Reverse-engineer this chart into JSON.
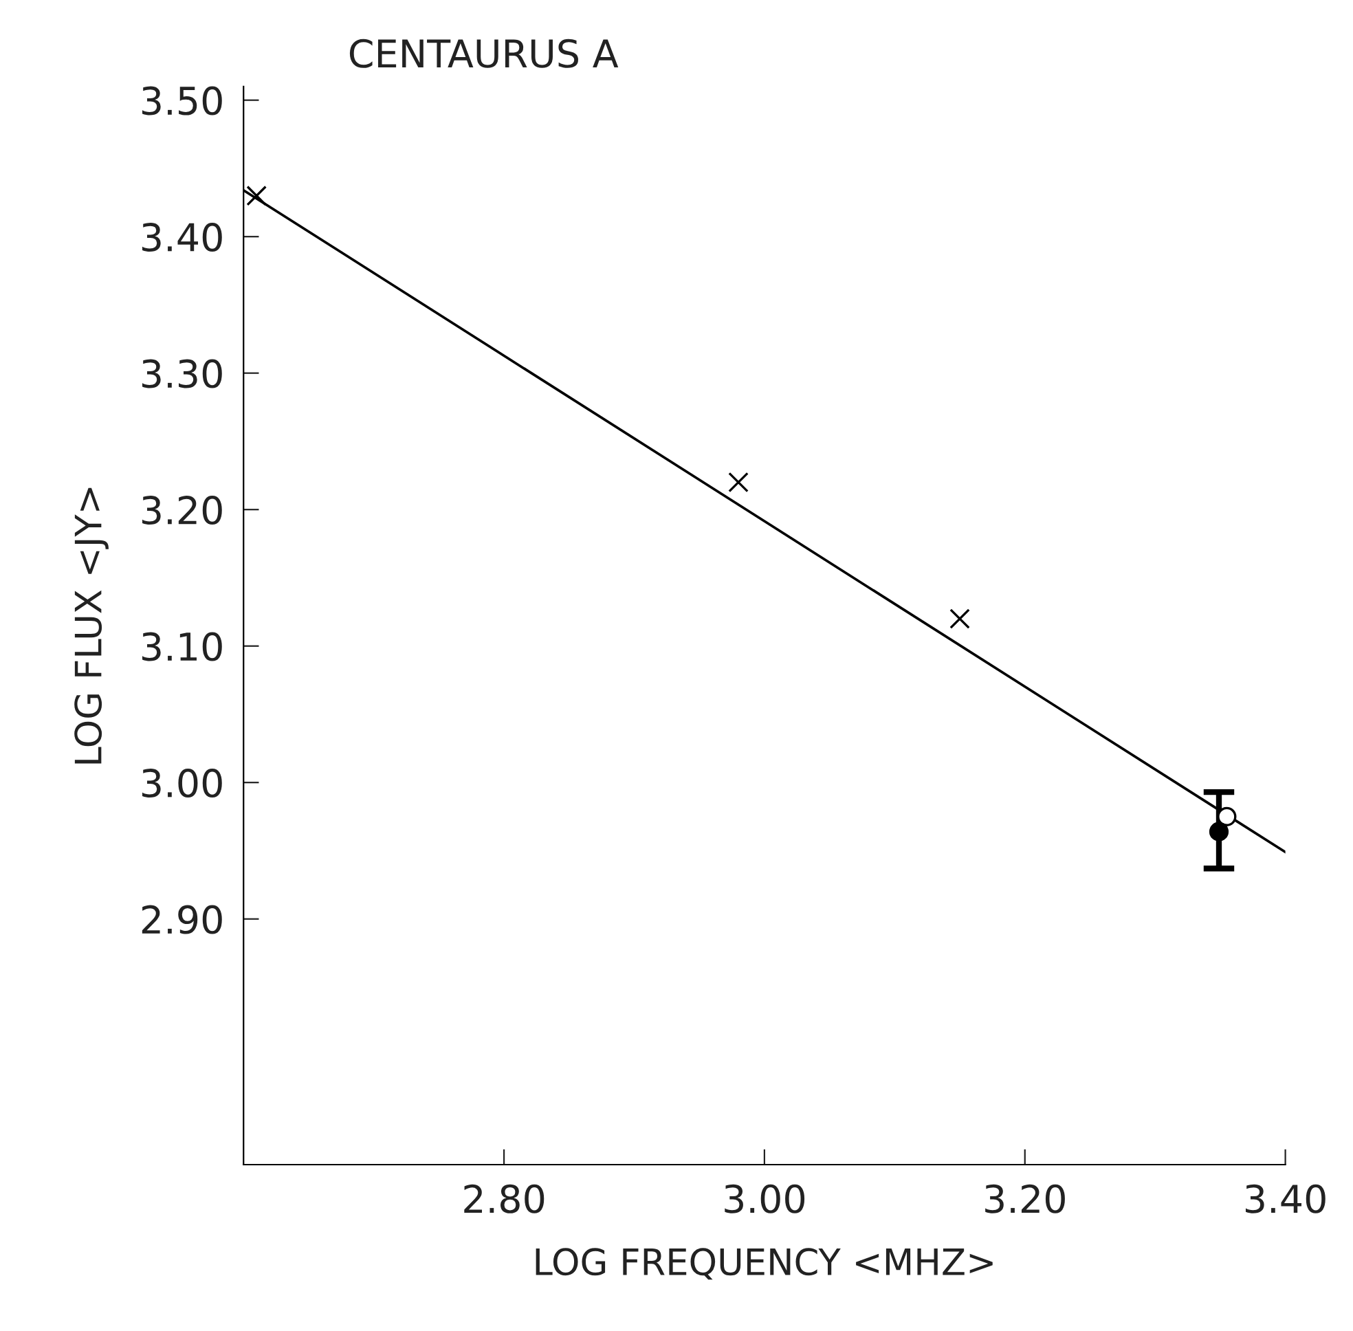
{
  "chart_data": {
    "type": "scatter",
    "title": "CENTAURUS A",
    "xlabel": "LOG FREQUENCY <MHZ>",
    "ylabel": "LOG FLUX <JY>",
    "xlim": [
      2.6,
      3.4
    ],
    "ylim": [
      2.72,
      3.51
    ],
    "xticks": [
      {
        "value": 2.8,
        "label": "2.80"
      },
      {
        "value": 3.0,
        "label": "3.00"
      },
      {
        "value": 3.2,
        "label": "3.20"
      },
      {
        "value": 3.4,
        "label": "3.40"
      }
    ],
    "yticks": [
      {
        "value": 2.9,
        "label": "2.90"
      },
      {
        "value": 3.0,
        "label": "3.00"
      },
      {
        "value": 3.1,
        "label": "3.10"
      },
      {
        "value": 3.2,
        "label": "3.20"
      },
      {
        "value": 3.3,
        "label": "3.30"
      },
      {
        "value": 3.4,
        "label": "3.40"
      },
      {
        "value": 3.5,
        "label": "3.50"
      }
    ],
    "grid": false,
    "legend": false,
    "series": [
      {
        "type": "line",
        "color": "#000000",
        "x": [
          2.6,
          3.4
        ],
        "values": [
          3.434,
          2.949
        ],
        "marker": "none",
        "line_style": "solid"
      },
      {
        "color": "#000000",
        "x": [
          2.61,
          2.98,
          3.15
        ],
        "values": [
          3.43,
          3.22,
          3.12
        ],
        "marker": "cross"
      },
      {
        "color": "#000000",
        "x": [
          3.355
        ],
        "values": [
          2.975
        ],
        "marker": "circle"
      },
      {
        "color": "#000000",
        "x": [
          3.349
        ],
        "values": [
          2.964
        ],
        "errors": [
          [
            2.937,
            2.993
          ]
        ],
        "marker": "circle"
      }
    ]
  }
}
